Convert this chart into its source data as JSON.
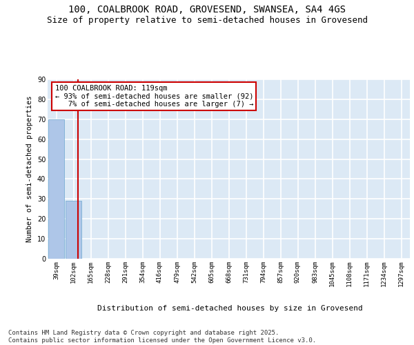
{
  "title": "100, COALBROOK ROAD, GROVESEND, SWANSEA, SA4 4GS",
  "subtitle": "Size of property relative to semi-detached houses in Grovesend",
  "xlabel": "Distribution of semi-detached houses by size in Grovesend",
  "ylabel": "Number of semi-detached properties",
  "categories": [
    "39sqm",
    "102sqm",
    "165sqm",
    "228sqm",
    "291sqm",
    "354sqm",
    "416sqm",
    "479sqm",
    "542sqm",
    "605sqm",
    "668sqm",
    "731sqm",
    "794sqm",
    "857sqm",
    "920sqm",
    "983sqm",
    "1045sqm",
    "1108sqm",
    "1171sqm",
    "1234sqm",
    "1297sqm"
  ],
  "values": [
    70,
    29,
    0,
    0,
    0,
    0,
    0,
    0,
    0,
    0,
    0,
    0,
    0,
    0,
    0,
    0,
    0,
    0,
    0,
    0,
    0
  ],
  "bar_color": "#aec6e8",
  "bar_edge_color": "#7aafd4",
  "background_color": "#dce9f5",
  "grid_color": "#ffffff",
  "red_line_index": 1.27,
  "annotation_text": "100 COALBROOK ROAD: 119sqm\n← 93% of semi-detached houses are smaller (92)\n   7% of semi-detached houses are larger (7) →",
  "annotation_box_color": "#ffffff",
  "annotation_box_edge_color": "#cc0000",
  "footer_line1": "Contains HM Land Registry data © Crown copyright and database right 2025.",
  "footer_line2": "Contains public sector information licensed under the Open Government Licence v3.0.",
  "ylim": [
    0,
    90
  ],
  "yticks": [
    0,
    10,
    20,
    30,
    40,
    50,
    60,
    70,
    80,
    90
  ],
  "title_fontsize": 10,
  "subtitle_fontsize": 9,
  "axis_label_fontsize": 7.5,
  "tick_fontsize": 6.5,
  "annotation_fontsize": 7.5,
  "footer_fontsize": 6.5
}
